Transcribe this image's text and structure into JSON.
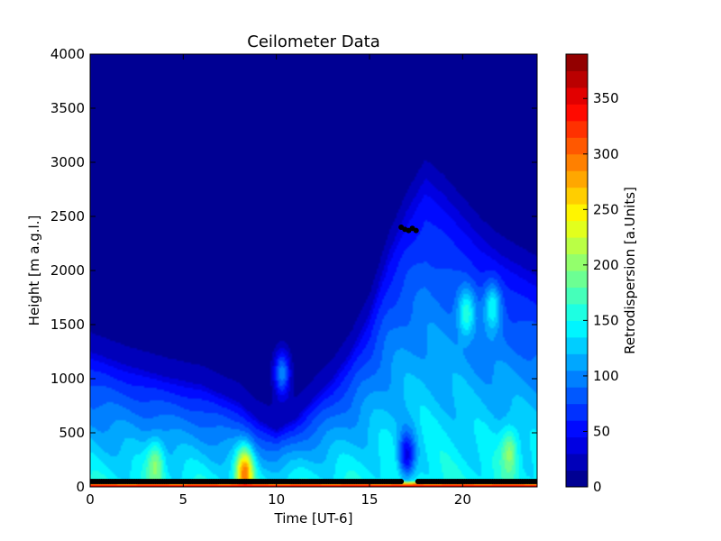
{
  "chart_data": {
    "type": "heatmap",
    "title": "Ceilometer Data",
    "xlabel": "Time [UT-6]",
    "ylabel": "Height [m a.g.l.]",
    "xlim": [
      0,
      24
    ],
    "ylim": [
      0,
      4000
    ],
    "x_ticks": [
      0,
      5,
      10,
      15,
      20
    ],
    "y_ticks": [
      0,
      500,
      1000,
      1500,
      2000,
      2500,
      3000,
      3500,
      4000
    ],
    "grid": false,
    "colorbar": {
      "label": "Retrodispersion [a.Units]",
      "range": [
        0,
        390
      ],
      "ticks": [
        0,
        50,
        100,
        150,
        200,
        250,
        300,
        350
      ],
      "levels": 26,
      "colormap": "jet"
    },
    "field": {
      "description_units": "Retrodispersion [a.Units]",
      "surface_layer": {
        "height_m": 60,
        "value": 330
      },
      "boundary_layer_top_m": [
        {
          "t": 0,
          "h": 1250
        },
        {
          "t": 2,
          "h": 1120
        },
        {
          "t": 4,
          "h": 1020
        },
        {
          "t": 6,
          "h": 940
        },
        {
          "t": 8,
          "h": 780
        },
        {
          "t": 9,
          "h": 620
        },
        {
          "t": 10,
          "h": 520
        },
        {
          "t": 11,
          "h": 620
        },
        {
          "t": 12,
          "h": 820
        },
        {
          "t": 13,
          "h": 1000
        },
        {
          "t": 14,
          "h": 1250
        },
        {
          "t": 15,
          "h": 1600
        },
        {
          "t": 16,
          "h": 2150
        },
        {
          "t": 17,
          "h": 2550
        },
        {
          "t": 18,
          "h": 2850
        },
        {
          "t": 19,
          "h": 2700
        },
        {
          "t": 20,
          "h": 2500
        },
        {
          "t": 21,
          "h": 2300
        },
        {
          "t": 22,
          "h": 2150
        },
        {
          "t": 23,
          "h": 2050
        },
        {
          "t": 24,
          "h": 1950
        }
      ],
      "features": [
        {
          "t": 10.3,
          "h": 1050,
          "value": 100
        },
        {
          "t": 17.0,
          "h": 300,
          "value": 40
        },
        {
          "t": 20.2,
          "h": 1600,
          "value": 160
        },
        {
          "t": 21.6,
          "h": 1650,
          "value": 150
        },
        {
          "t": 3.5,
          "h": 180,
          "value": 200
        },
        {
          "t": 8.3,
          "h": 120,
          "value": 300
        },
        {
          "t": 22.5,
          "h": 300,
          "value": 200
        }
      ]
    },
    "series": [
      {
        "type": "scatter",
        "points_x_range": [
          0,
          16.7
        ],
        "y": 50
      },
      {
        "type": "scatter",
        "points_x_range": [
          17.6,
          24
        ],
        "y": 50
      },
      {
        "type": "scatter",
        "x": [
          16.7,
          16.9,
          17.1,
          17.3,
          17.5
        ],
        "y": [
          2400,
          2380,
          2370,
          2390,
          2370
        ]
      }
    ]
  }
}
